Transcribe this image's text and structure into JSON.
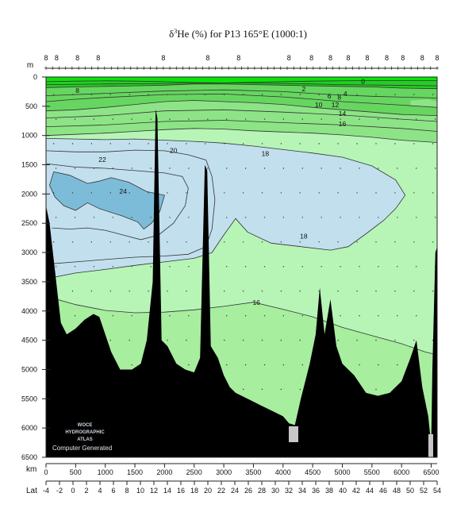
{
  "chart_data": {
    "type": "contour-section",
    "title_symbol": "δ",
    "title_sup": "3",
    "title_rest": "He (%) for P13 165°E (1000:1)",
    "ylabel": "m",
    "xlabel_km": "km",
    "xlabel_lat": "Lat",
    "ylim": [
      6500,
      0
    ],
    "xlim": [
      0,
      6600
    ],
    "depth_ticks": [
      0,
      500,
      1000,
      1500,
      2000,
      2500,
      3000,
      3500,
      4000,
      4500,
      5000,
      5500,
      6000,
      6500
    ],
    "km_ticks": [
      0,
      500,
      1000,
      1500,
      2000,
      2500,
      3000,
      3500,
      4000,
      4500,
      5000,
      5500,
      6000,
      6500
    ],
    "lat_ticks": [
      -4,
      -2,
      0,
      2,
      4,
      6,
      8,
      10,
      12,
      14,
      16,
      18,
      20,
      22,
      24,
      26,
      28,
      30,
      32,
      34,
      36,
      38,
      40,
      42,
      44,
      46,
      48,
      50,
      52,
      54
    ],
    "station_labels": [
      {
        "km": 0,
        "label": "8"
      },
      {
        "km": 180,
        "label": "8"
      },
      {
        "km": 530,
        "label": "8"
      },
      {
        "km": 880,
        "label": "8"
      },
      {
        "km": 1980,
        "label": "8"
      },
      {
        "km": 2730,
        "label": "8"
      },
      {
        "km": 3250,
        "label": "8"
      },
      {
        "km": 4100,
        "label": "8"
      },
      {
        "km": 4480,
        "label": "8"
      },
      {
        "km": 4800,
        "label": "8"
      },
      {
        "km": 5100,
        "label": "8"
      },
      {
        "km": 5420,
        "label": "8"
      },
      {
        "km": 5750,
        "label": "8"
      },
      {
        "km": 6020,
        "label": "8"
      },
      {
        "km": 6350,
        "label": "8"
      },
      {
        "km": 6600,
        "label": "8"
      }
    ],
    "contour_levels": [
      0,
      2,
      4,
      6,
      8,
      10,
      12,
      14,
      16,
      18,
      20,
      22,
      24
    ],
    "contour_labels": [
      {
        "km": 530,
        "depth": 260,
        "label": "8"
      },
      {
        "km": 2150,
        "depth": 1280,
        "label": "20"
      },
      {
        "km": 950,
        "depth": 1440,
        "label": "22"
      },
      {
        "km": 1300,
        "depth": 1980,
        "label": "24"
      },
      {
        "km": 3700,
        "depth": 1340,
        "label": "18"
      },
      {
        "km": 4350,
        "depth": 2750,
        "label": "18"
      },
      {
        "km": 3550,
        "depth": 3880,
        "label": "16"
      },
      {
        "km": 4350,
        "depth": 230,
        "label": "2"
      },
      {
        "km": 4780,
        "depth": 350,
        "label": "6"
      },
      {
        "km": 4950,
        "depth": 370,
        "label": "8"
      },
      {
        "km": 5050,
        "depth": 310,
        "label": "4"
      },
      {
        "km": 4600,
        "depth": 500,
        "label": "10"
      },
      {
        "km": 4880,
        "depth": 500,
        "label": "12"
      },
      {
        "km": 5000,
        "depth": 650,
        "label": "14"
      },
      {
        "km": 5000,
        "depth": 830,
        "label": "16"
      },
      {
        "km": 5350,
        "depth": 100,
        "label": "0"
      }
    ],
    "watermark_lines": [
      "WOCE",
      "HYDROGRAPHIC",
      "ATLAS"
    ],
    "computer_generated": "Computer Generated",
    "colors": {
      "v24": "#7dbcd8",
      "v20": "#c2dfee",
      "v18": "#b6f5b6",
      "v16": "#a7ee9f",
      "v14": "#8de486",
      "v10": "#66d660",
      "v4": "#24cd24",
      "v0": "#08e608",
      "bottom": "#000000",
      "contour": "#333333"
    }
  }
}
